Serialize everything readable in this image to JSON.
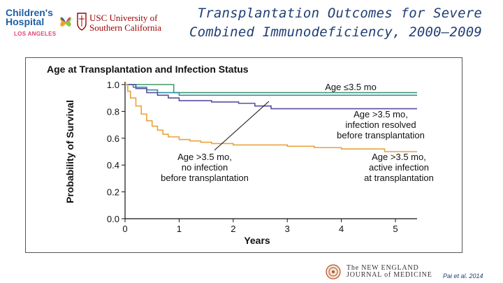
{
  "header": {
    "title_line1": "Transplantation Outcomes for Severe",
    "title_line2": "Combined Immunodeficiency, 2000–2009"
  },
  "logos": {
    "chla_name": "Children's Hospital",
    "chla_location": "LOS ANGELES",
    "usc_line1": "USC University of",
    "usc_line2": "Southern California",
    "nejm_line1": "The NEW ENGLAND",
    "nejm_line2": "JOURNAL of MEDICINE",
    "chla_color": "#1d5fa8",
    "usc_color": "#990000"
  },
  "citation": "Pai et al. 2014",
  "chart_data": {
    "type": "line",
    "title": "Age at Transplantation and Infection Status",
    "xlabel": "Years",
    "ylabel": "Probability of Survival",
    "xlim": [
      0,
      5.4
    ],
    "ylim": [
      0,
      1.0
    ],
    "x_ticks": [
      "0",
      "1",
      "2",
      "3",
      "4",
      "5"
    ],
    "y_ticks": [
      "0.0",
      "0.2",
      "0.4",
      "0.6",
      "0.8",
      "1.0"
    ],
    "grid": false,
    "series": [
      {
        "name": "Age ≤3.5 mo",
        "color": "#3f9a6a",
        "points": [
          [
            0,
            1.0
          ],
          [
            0.9,
            1.0
          ],
          [
            0.9,
            0.94
          ],
          [
            5.4,
            0.94
          ]
        ]
      },
      {
        "name": "Age >3.5 mo, no infection before transplantation",
        "color": "#2f8fa8",
        "points": [
          [
            0,
            1.0
          ],
          [
            0.15,
            0.98
          ],
          [
            0.4,
            0.96
          ],
          [
            0.6,
            0.94
          ],
          [
            1.0,
            0.92
          ],
          [
            5.4,
            0.92
          ]
        ]
      },
      {
        "name": "Age >3.5 mo, infection resolved before transplantation",
        "color": "#5a4e9c",
        "points": [
          [
            0,
            1.0
          ],
          [
            0.2,
            0.97
          ],
          [
            0.4,
            0.94
          ],
          [
            0.6,
            0.92
          ],
          [
            0.8,
            0.9
          ],
          [
            1.0,
            0.88
          ],
          [
            1.6,
            0.87
          ],
          [
            2.1,
            0.86
          ],
          [
            2.4,
            0.84
          ],
          [
            2.7,
            0.82
          ],
          [
            5.4,
            0.82
          ]
        ]
      },
      {
        "name": "Age >3.5 mo, active infection at transplantation",
        "color": "#e8a33c",
        "points": [
          [
            0,
            1.0
          ],
          [
            0.05,
            0.95
          ],
          [
            0.1,
            0.9
          ],
          [
            0.2,
            0.84
          ],
          [
            0.3,
            0.78
          ],
          [
            0.4,
            0.73
          ],
          [
            0.5,
            0.69
          ],
          [
            0.6,
            0.66
          ],
          [
            0.7,
            0.63
          ],
          [
            0.8,
            0.61
          ],
          [
            1.0,
            0.59
          ],
          [
            1.2,
            0.58
          ],
          [
            1.4,
            0.57
          ],
          [
            1.6,
            0.56
          ],
          [
            2.0,
            0.55
          ],
          [
            2.5,
            0.55
          ],
          [
            3.0,
            0.54
          ],
          [
            3.5,
            0.53
          ],
          [
            4.0,
            0.52
          ],
          [
            4.5,
            0.52
          ],
          [
            4.8,
            0.5
          ],
          [
            5.4,
            0.5
          ]
        ]
      }
    ],
    "annotations": [
      {
        "lines": [
          "Age ≤3.5 mo"
        ]
      },
      {
        "lines": [
          "Age >3.5 mo,",
          "infection resolved",
          "before transplantation"
        ]
      },
      {
        "lines": [
          "Age >3.5 mo,",
          "no infection",
          "before transplantation"
        ]
      },
      {
        "lines": [
          "Age >3.5 mo,",
          "active infection",
          "at transplantation"
        ]
      }
    ]
  }
}
